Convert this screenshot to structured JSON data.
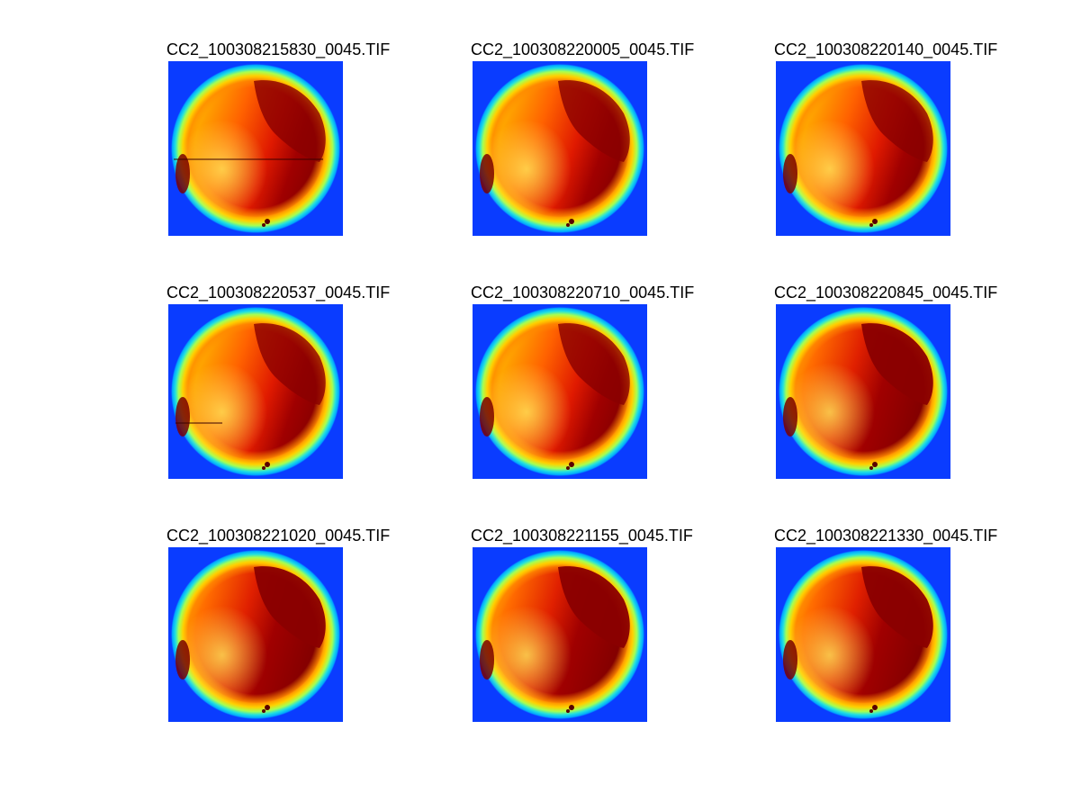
{
  "figure": {
    "colormap": "jet",
    "background": "#ffffff",
    "panels": [
      {
        "title": "CC2_100308215830_0045.TIF",
        "artifact": "line-full"
      },
      {
        "title": "CC2_100308220005_0045.TIF",
        "artifact": "none"
      },
      {
        "title": "CC2_100308220140_0045.TIF",
        "artifact": "none"
      },
      {
        "title": "CC2_100308220537_0045.TIF",
        "artifact": "line-short"
      },
      {
        "title": "CC2_100308220710_0045.TIF",
        "artifact": "none"
      },
      {
        "title": "CC2_100308220845_0045.TIF",
        "artifact": "none"
      },
      {
        "title": "CC2_100308221020_0045.TIF",
        "artifact": "none"
      },
      {
        "title": "CC2_100308221155_0045.TIF",
        "artifact": "none"
      },
      {
        "title": "CC2_100308221330_0045.TIF",
        "artifact": "none"
      }
    ]
  }
}
